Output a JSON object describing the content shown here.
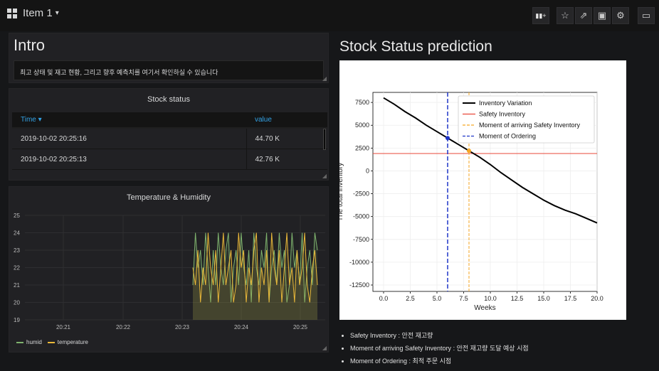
{
  "dashboard": {
    "title": "Item 1",
    "caret": "▾"
  },
  "toolbar": [
    {
      "name": "add-panel-button",
      "icon": "bar-chart-plus-icon",
      "glyph": "▮▮+"
    },
    {
      "name": "star-button",
      "icon": "star-icon",
      "glyph": "☆"
    },
    {
      "name": "share-button",
      "icon": "share-icon",
      "glyph": "⇗"
    },
    {
      "name": "save-button",
      "icon": "save-icon",
      "glyph": "▣"
    },
    {
      "name": "settings-button",
      "icon": "gear-icon",
      "glyph": "⚙"
    },
    {
      "name": "tv-mode-button",
      "icon": "monitor-icon",
      "glyph": "▭"
    }
  ],
  "intro": {
    "title": "Intro",
    "text": "최고 상태 및 재고 현황, 그리고 향후 예측치를 여기서 확인하실 수 있습니다"
  },
  "stock_status": {
    "title": "Stock status",
    "headers": {
      "time": "Time ▾",
      "value": "value"
    },
    "rows": [
      {
        "time": "2019-10-02 20:25:16",
        "value": "44.70 K"
      },
      {
        "time": "2019-10-02 20:25:13",
        "value": "42.76 K"
      }
    ]
  },
  "temp_humidity": {
    "title": "Temperature & Humidity",
    "legend": [
      {
        "label": "humid",
        "color": "#7eb26d"
      },
      {
        "label": "temperature",
        "color": "#eab839"
      }
    ],
    "chart_data": {
      "type": "line",
      "ylim": [
        19,
        25
      ],
      "yticks": [
        "25",
        "24",
        "23",
        "22",
        "21",
        "20",
        "19"
      ],
      "xticks": [
        "20:21",
        "20:22",
        "20:23",
        "20:24",
        "20:25"
      ],
      "series": [
        {
          "name": "humid",
          "color": "#7eb26d",
          "values": [
            21,
            24,
            22,
            23,
            21,
            24,
            22,
            20,
            23,
            21,
            24,
            22,
            21,
            23,
            24,
            20,
            22,
            23,
            21,
            24,
            22,
            21,
            23,
            20,
            24,
            22,
            21,
            23,
            22,
            24,
            20,
            22,
            23,
            21,
            24,
            22,
            23,
            20,
            21,
            24,
            22,
            23,
            21,
            24,
            20,
            22,
            23,
            21,
            24,
            23
          ]
        },
        {
          "name": "temperature",
          "color": "#eab839",
          "values": [
            22,
            21,
            23,
            20,
            22,
            21,
            24,
            22,
            21,
            23,
            20,
            22,
            24,
            21,
            22,
            23,
            20,
            21,
            24,
            22,
            23,
            20,
            22,
            21,
            23,
            24,
            20,
            22,
            21,
            23,
            20,
            24,
            22,
            21,
            23,
            20,
            22,
            24,
            21,
            22,
            20,
            23,
            21,
            22,
            24,
            21,
            20,
            22,
            23,
            21
          ]
        }
      ]
    }
  },
  "prediction": {
    "title": "Stock Status prediction",
    "chart_data": {
      "type": "line",
      "xlabel": "Weeks",
      "ylabel": "The total inventory",
      "xlim": [
        -1,
        20
      ],
      "ylim": [
        -13200,
        8600
      ],
      "xticks": [
        "0.0",
        "2.5",
        "5.0",
        "7.5",
        "10.0",
        "12.5",
        "15.0",
        "17.5",
        "20.0"
      ],
      "yticks": [
        "7500",
        "5000",
        "2500",
        "0",
        "-2500",
        "-5000",
        "-7500",
        "-10000",
        "-12500"
      ],
      "legend": [
        {
          "label": "Inventory Variation",
          "color": "#000000",
          "style": "solid"
        },
        {
          "label": "Safety Inventory",
          "color": "#e8473a",
          "style": "solid"
        },
        {
          "label": "Moment of arriving Safety Inventory",
          "color": "#f5a623",
          "style": "dashed"
        },
        {
          "label": "Moment of Ordering",
          "color": "#1f35c8",
          "style": "dashed"
        }
      ],
      "inventory_x": [
        0,
        1,
        2,
        3,
        4,
        5,
        6,
        7,
        8,
        9,
        10,
        11,
        12,
        13,
        14,
        15,
        16,
        17,
        18,
        19,
        20
      ],
      "inventory_y": [
        8000,
        7300,
        6500,
        5800,
        5000,
        4300,
        3600,
        2900,
        2200,
        1500,
        700,
        -200,
        -1000,
        -1800,
        -2500,
        -3200,
        -3800,
        -4300,
        -4700,
        -5200,
        -5700
      ],
      "safety_inventory": 1900,
      "moment_of_ordering": 6,
      "moment_of_arriving": 8,
      "order_point": [
        6,
        3600
      ],
      "arrive_point": [
        8,
        2200
      ]
    }
  },
  "notes": [
    "Safety Inventory : 안전 재고량",
    "Moment of arriving Safety Inventory : 안전 재고량 도달 예상 시점",
    "Moment of Ordering : 최적 주문 시점"
  ]
}
